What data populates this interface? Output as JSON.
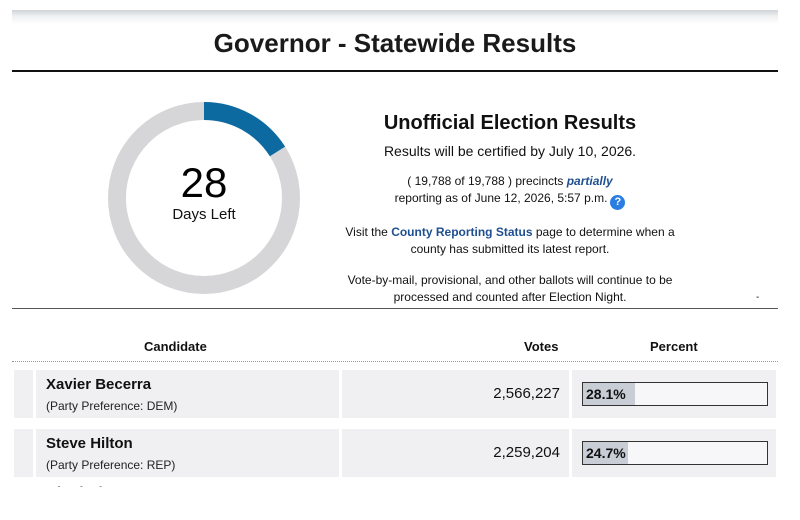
{
  "header": {
    "title": "Governor - Statewide Results"
  },
  "countdown": {
    "days": 28,
    "label": "Days Left",
    "fraction_elapsed": 0.16,
    "ring_color": "#0d6aa1",
    "track_color": "#d6d6d8"
  },
  "info": {
    "heading": "Unofficial Election Results",
    "certification": "Results will be certified by July 10, 2026.",
    "precincts_prefix": "( 19,788 of 19,788 ) precincts",
    "partial_word": "partially",
    "reporting_line": "reporting as of June 12, 2026, 5:57 p.m.",
    "county_prefix": "Visit the",
    "county_link": "County Reporting Status",
    "county_suffix": "page to determine when a",
    "county_line2": "county has submitted its latest report.",
    "ballots_line1": "Vote-by-mail, provisional, and other ballots will continue to be",
    "ballots_line2": "processed and counted after Election Night."
  },
  "stray_mark": "-",
  "table": {
    "headers": {
      "candidate": "Candidate",
      "votes": "Votes",
      "percent": "Percent"
    },
    "rows": [
      {
        "name": "Xavier Becerra",
        "party": "(Party Preference: DEM)",
        "votes": "2,566,227",
        "percent": "28.1%",
        "percent_value": 28.1
      },
      {
        "name": "Steve Hilton",
        "party": "(Party Preference: REP)",
        "votes": "2,259,204",
        "percent": "24.7%",
        "percent_value": 24.7
      }
    ],
    "partial_next_name": "Chad Bianco"
  }
}
